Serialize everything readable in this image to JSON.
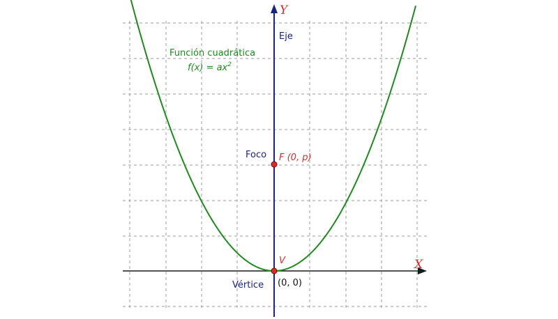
{
  "colors": {
    "curve": "#1e8a1e",
    "axis_y": "#1a237e",
    "axis_x": "#1a1a1a",
    "grid": "#9e9e9e",
    "point": "#d32f2f",
    "label_blue": "#1a237e",
    "label_red": "#d32f2f",
    "label_black": "#111111"
  },
  "axes": {
    "x_label": "X",
    "y_label": "Y"
  },
  "labels": {
    "function_title": "Función cuadrática",
    "function_formula": "f(x) = ax",
    "function_exponent": "2",
    "axis_name": "Eje",
    "focus_name": "Foco",
    "focus_coords": "F (0, p)",
    "vertex_letter": "V",
    "vertex_name": "Vértice",
    "vertex_coords": "(0, 0)"
  }
}
